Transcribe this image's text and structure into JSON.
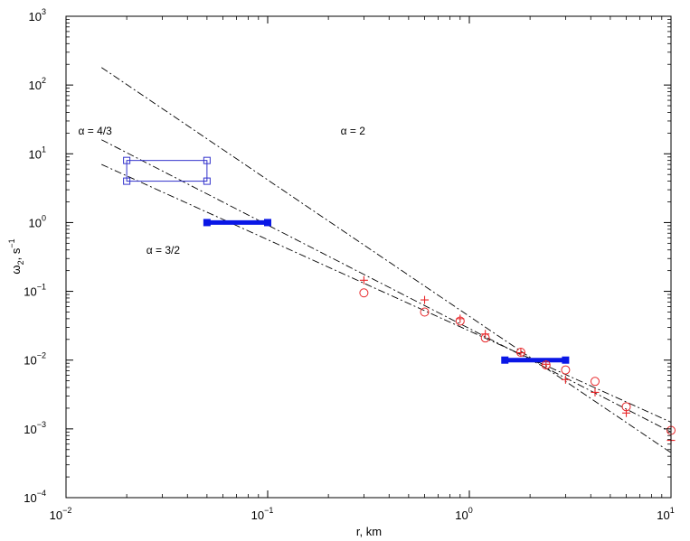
{
  "chart_data": {
    "type": "scatter",
    "xscale": "log",
    "yscale": "log",
    "xlim": [
      0.01,
      10
    ],
    "ylim": [
      0.0001,
      1000
    ],
    "grid": false,
    "xlabel": "r, km",
    "ylabel": {
      "base": "ω",
      "sub": "2",
      "rest": ", s",
      "sup": "−1"
    },
    "xticks": [
      {
        "value": 0.01,
        "base": "10",
        "exp": "−2"
      },
      {
        "value": 0.1,
        "base": "10",
        "exp": "−1"
      },
      {
        "value": 1,
        "base": "10",
        "exp": "0"
      },
      {
        "value": 10,
        "base": "10",
        "exp": "1"
      }
    ],
    "yticks": [
      {
        "value": 0.0001,
        "base": "10",
        "exp": "−4"
      },
      {
        "value": 0.001,
        "base": "10",
        "exp": "−3"
      },
      {
        "value": 0.01,
        "base": "10",
        "exp": "−2"
      },
      {
        "value": 0.1,
        "base": "10",
        "exp": "−1"
      },
      {
        "value": 1,
        "base": "10",
        "exp": "0"
      },
      {
        "value": 10,
        "base": "10",
        "exp": "1"
      },
      {
        "value": 100,
        "base": "10",
        "exp": "2"
      },
      {
        "value": 1000,
        "base": "10",
        "exp": "3"
      }
    ],
    "reference_lines": [
      {
        "label": "α = 2",
        "style": "dashdot",
        "points": [
          [
            0.015,
            180
          ],
          [
            10,
            0.00045
          ]
        ],
        "label_at": [
          0.23,
          19
        ]
      },
      {
        "label": "α = 4/3",
        "style": "dashdot",
        "points": [
          [
            0.015,
            16
          ],
          [
            10,
            0.0009
          ]
        ],
        "label_at": [
          0.0115,
          19
        ]
      },
      {
        "label": "α = 3/2",
        "style": "dashdot",
        "points": [
          [
            0.015,
            7
          ],
          [
            10,
            0.00125
          ]
        ],
        "label_at": [
          0.025,
          0.35
        ]
      }
    ],
    "series": [
      {
        "marker": "circle",
        "color": "#e8272a",
        "points": [
          [
            0.3,
            0.095
          ],
          [
            0.6,
            0.05
          ],
          [
            0.9,
            0.037
          ],
          [
            1.2,
            0.021
          ],
          [
            1.8,
            0.013
          ],
          [
            2.4,
            0.0085
          ],
          [
            3.0,
            0.0072
          ],
          [
            4.2,
            0.0049
          ],
          [
            6.0,
            0.0021
          ],
          [
            10.0,
            0.00095
          ]
        ]
      },
      {
        "marker": "plus",
        "color": "#e8272a",
        "points": [
          [
            0.3,
            0.145
          ],
          [
            0.6,
            0.075
          ],
          [
            0.9,
            0.04
          ],
          [
            1.2,
            0.024
          ],
          [
            1.8,
            0.0128
          ],
          [
            2.4,
            0.0087
          ],
          [
            3.0,
            0.0052
          ],
          [
            4.2,
            0.0034
          ],
          [
            6.0,
            0.0017
          ],
          [
            10.0,
            0.00068
          ]
        ]
      }
    ],
    "boxes": [
      {
        "color": "#3333cc",
        "marker": "square",
        "x": [
          0.02,
          0.05
        ],
        "y": [
          4,
          8
        ]
      }
    ],
    "segments": [
      {
        "color": "#0a17e6",
        "style": "thick",
        "x": [
          0.05,
          0.1
        ],
        "y": 1
      },
      {
        "color": "#0a17e6",
        "style": "thick",
        "x": [
          1.5,
          3.0
        ],
        "y": 0.01
      }
    ]
  }
}
